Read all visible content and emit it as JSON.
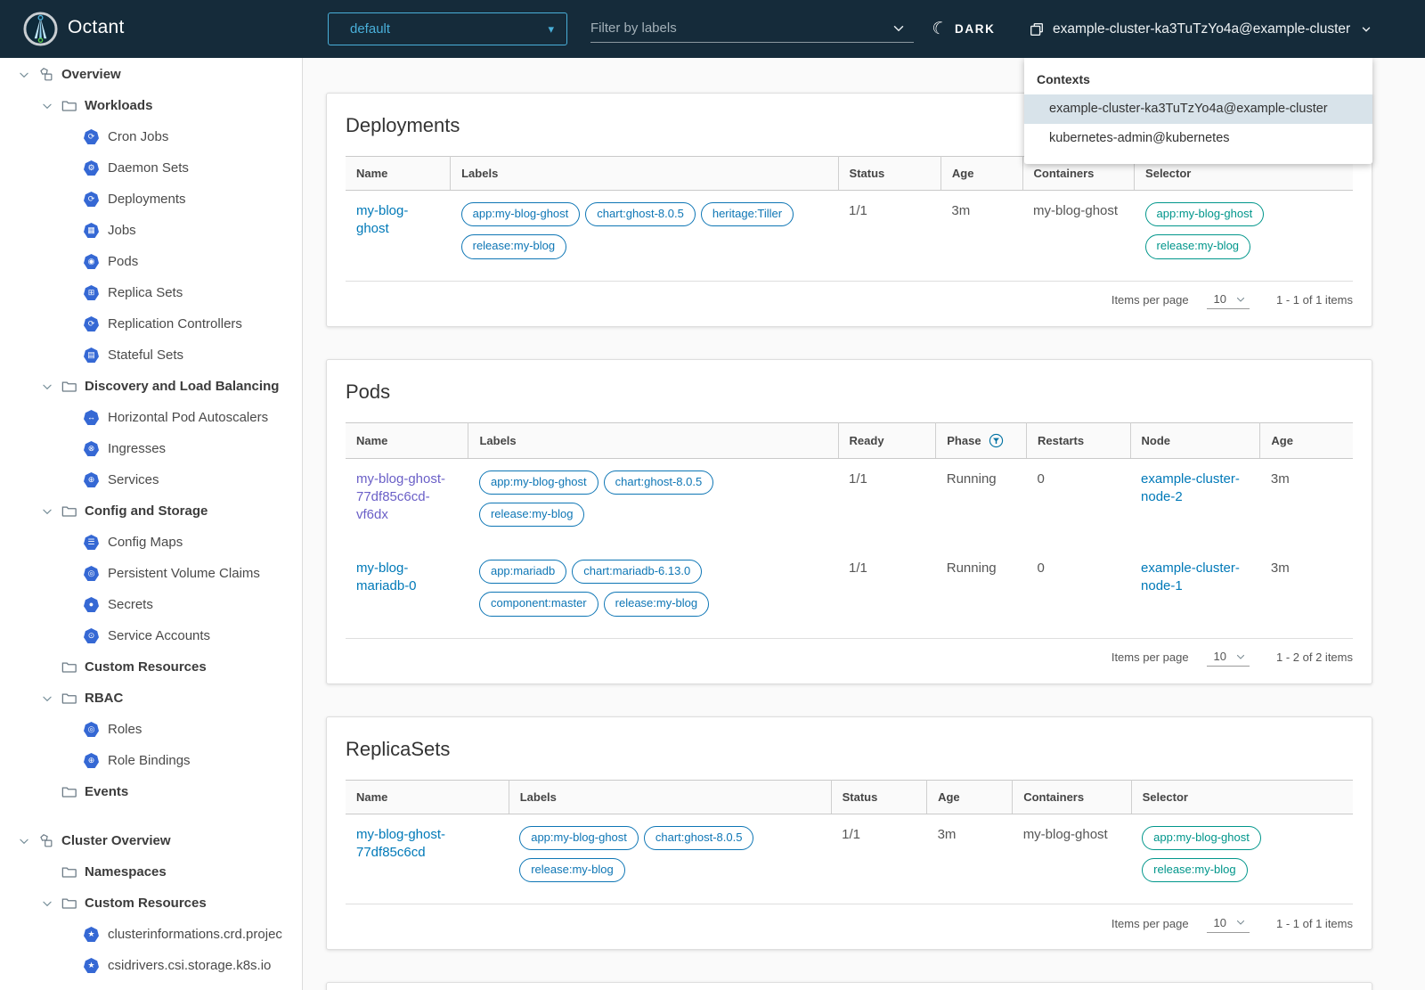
{
  "colors": {
    "header_bg": "#152b3a",
    "accent": "#49afd9",
    "link": "#0079b8",
    "visited_link": "#6a5fc7",
    "pill_blue": "#0e76b5",
    "pill_teal": "#00968b",
    "k8s_icon_blue": "#3568d4",
    "context_selected_bg": "#d8e3ea"
  },
  "header": {
    "app_name": "Octant",
    "namespace": "default",
    "filter_placeholder": "Filter by labels",
    "theme_toggle_label": "DARK",
    "context": "example-cluster-ka3TuTzYo4a@example-cluster"
  },
  "contexts_dropdown": {
    "title": "Contexts",
    "items": [
      {
        "label": "example-cluster-ka3TuTzYo4a@example-cluster",
        "selected": true
      },
      {
        "label": "kubernetes-admin@kubernetes",
        "selected": false
      }
    ]
  },
  "sidebar": {
    "items": [
      {
        "label": "Overview",
        "level": 0,
        "icon": "objects",
        "chevron": true,
        "bold": true
      },
      {
        "label": "Workloads",
        "level": 1,
        "icon": "folder",
        "chevron": true,
        "bold": true
      },
      {
        "label": "Cron Jobs",
        "level": 2,
        "icon": "cron-jobs"
      },
      {
        "label": "Daemon Sets",
        "level": 2,
        "icon": "daemon-sets"
      },
      {
        "label": "Deployments",
        "level": 2,
        "icon": "deployments"
      },
      {
        "label": "Jobs",
        "level": 2,
        "icon": "jobs"
      },
      {
        "label": "Pods",
        "level": 2,
        "icon": "pods"
      },
      {
        "label": "Replica Sets",
        "level": 2,
        "icon": "replica-sets"
      },
      {
        "label": "Replication Controllers",
        "level": 2,
        "icon": "replication-controllers"
      },
      {
        "label": "Stateful Sets",
        "level": 2,
        "icon": "stateful-sets"
      },
      {
        "label": "Discovery and Load Balancing",
        "level": 1,
        "icon": "folder",
        "chevron": true,
        "bold": true
      },
      {
        "label": "Horizontal Pod Autoscalers",
        "level": 2,
        "icon": "horizontal-pod-autoscalers"
      },
      {
        "label": "Ingresses",
        "level": 2,
        "icon": "ingresses"
      },
      {
        "label": "Services",
        "level": 2,
        "icon": "services"
      },
      {
        "label": "Config and Storage",
        "level": 1,
        "icon": "folder",
        "chevron": true,
        "bold": true
      },
      {
        "label": "Config Maps",
        "level": 2,
        "icon": "config-maps"
      },
      {
        "label": "Persistent Volume Claims",
        "level": 2,
        "icon": "persistent-volume-claims"
      },
      {
        "label": "Secrets",
        "level": 2,
        "icon": "secrets"
      },
      {
        "label": "Service Accounts",
        "level": 2,
        "icon": "service-accounts"
      },
      {
        "label": "Custom Resources",
        "level": 1,
        "icon": "folder",
        "chevron": false,
        "bold": true
      },
      {
        "label": "RBAC",
        "level": 1,
        "icon": "folder",
        "chevron": true,
        "bold": true
      },
      {
        "label": "Roles",
        "level": 2,
        "icon": "roles"
      },
      {
        "label": "Role Bindings",
        "level": 2,
        "icon": "role-bindings"
      },
      {
        "label": "Events",
        "level": 1,
        "icon": "folder",
        "chevron": false,
        "bold": true
      },
      {
        "label": "Cluster Overview",
        "level": 0,
        "icon": "objects",
        "chevron": true,
        "bold": true,
        "gap_before": true
      },
      {
        "label": "Namespaces",
        "level": 1,
        "icon": "folder",
        "chevron": false,
        "bold": true
      },
      {
        "label": "Custom Resources",
        "level": 1,
        "icon": "folder",
        "chevron": true,
        "bold": true
      },
      {
        "label": "clusterinformations.crd.projec",
        "level": 2,
        "icon": "custom-resource"
      },
      {
        "label": "csidrivers.csi.storage.k8s.io",
        "level": 2,
        "icon": "custom-resource"
      }
    ]
  },
  "main": {
    "title": "Overview",
    "cards": [
      {
        "id": "deployments",
        "title": "Deployments",
        "columns": [
          {
            "label": "Name"
          },
          {
            "label": "Labels"
          },
          {
            "label": "Status"
          },
          {
            "label": "Age"
          },
          {
            "label": "Containers"
          },
          {
            "label": "Selector"
          }
        ],
        "rows": [
          [
            {
              "kind": "link",
              "text": "my-blog-ghost"
            },
            {
              "kind": "labels",
              "color": "blue",
              "items": [
                "app:my-blog-ghost",
                "chart:ghost-8.0.5",
                "heritage:Tiller",
                "release:my-blog"
              ]
            },
            {
              "kind": "text",
              "text": "1/1"
            },
            {
              "kind": "text",
              "text": "3m"
            },
            {
              "kind": "text",
              "text": "my-blog-ghost"
            },
            {
              "kind": "labels",
              "color": "teal",
              "items": [
                "app:my-blog-ghost",
                "release:my-blog"
              ]
            }
          ]
        ],
        "pagination": {
          "label": "Items per page",
          "page_size": "10",
          "range": "1 - 1 of 1 items"
        }
      },
      {
        "id": "pods",
        "title": "Pods",
        "columns": [
          {
            "label": "Name"
          },
          {
            "label": "Labels"
          },
          {
            "label": "Ready"
          },
          {
            "label": "Phase",
            "filter_icon": true
          },
          {
            "label": "Restarts"
          },
          {
            "label": "Node"
          },
          {
            "label": "Age"
          }
        ],
        "rows": [
          [
            {
              "kind": "link",
              "text": "my-blog-ghost-77df85c6cd-vf6dx",
              "visited": true
            },
            {
              "kind": "labels",
              "color": "blue",
              "items": [
                "app:my-blog-ghost",
                "chart:ghost-8.0.5",
                "release:my-blog"
              ]
            },
            {
              "kind": "text",
              "text": "1/1"
            },
            {
              "kind": "text",
              "text": "Running"
            },
            {
              "kind": "text",
              "text": "0"
            },
            {
              "kind": "link",
              "text": "example-cluster-node-2"
            },
            {
              "kind": "text",
              "text": "3m"
            }
          ],
          [
            {
              "kind": "link",
              "text": "my-blog-mariadb-0"
            },
            {
              "kind": "labels",
              "color": "blue",
              "items": [
                "app:mariadb",
                "chart:mariadb-6.13.0",
                "component:master",
                "release:my-blog"
              ]
            },
            {
              "kind": "text",
              "text": "1/1"
            },
            {
              "kind": "text",
              "text": "Running"
            },
            {
              "kind": "text",
              "text": "0"
            },
            {
              "kind": "link",
              "text": "example-cluster-node-1"
            },
            {
              "kind": "text",
              "text": "3m"
            }
          ]
        ],
        "pagination": {
          "label": "Items per page",
          "page_size": "10",
          "range": "1 - 2 of 2 items"
        }
      },
      {
        "id": "replicasets",
        "title": "ReplicaSets",
        "columns": [
          {
            "label": "Name"
          },
          {
            "label": "Labels"
          },
          {
            "label": "Status"
          },
          {
            "label": "Age"
          },
          {
            "label": "Containers"
          },
          {
            "label": "Selector"
          }
        ],
        "rows": [
          [
            {
              "kind": "link",
              "text": "my-blog-ghost-77df85c6cd"
            },
            {
              "kind": "labels",
              "color": "blue",
              "items": [
                "app:my-blog-ghost",
                "chart:ghost-8.0.5",
                "release:my-blog"
              ]
            },
            {
              "kind": "text",
              "text": "1/1"
            },
            {
              "kind": "text",
              "text": "3m"
            },
            {
              "kind": "text",
              "text": "my-blog-ghost"
            },
            {
              "kind": "labels",
              "color": "teal",
              "items": [
                "app:my-blog-ghost",
                "release:my-blog"
              ]
            }
          ]
        ],
        "pagination": {
          "label": "Items per page",
          "page_size": "10",
          "range": "1 - 1 of 1 items"
        }
      }
    ]
  },
  "icons": {
    "moon": "☾",
    "caret_down": "▾",
    "k8s_glyphs": {
      "cron-jobs": "⟳",
      "daemon-sets": "⚙",
      "deployments": "⟳",
      "jobs": "▦",
      "pods": "◉",
      "replica-sets": "⊞",
      "replication-controllers": "⟳",
      "stateful-sets": "▤",
      "horizontal-pod-autoscalers": "↔",
      "ingresses": "⊗",
      "services": "⊕",
      "config-maps": "☰",
      "persistent-volume-claims": "◎",
      "secrets": "●",
      "service-accounts": "⊙",
      "roles": "◎",
      "role-bindings": "⊕",
      "custom-resource": "★"
    }
  }
}
